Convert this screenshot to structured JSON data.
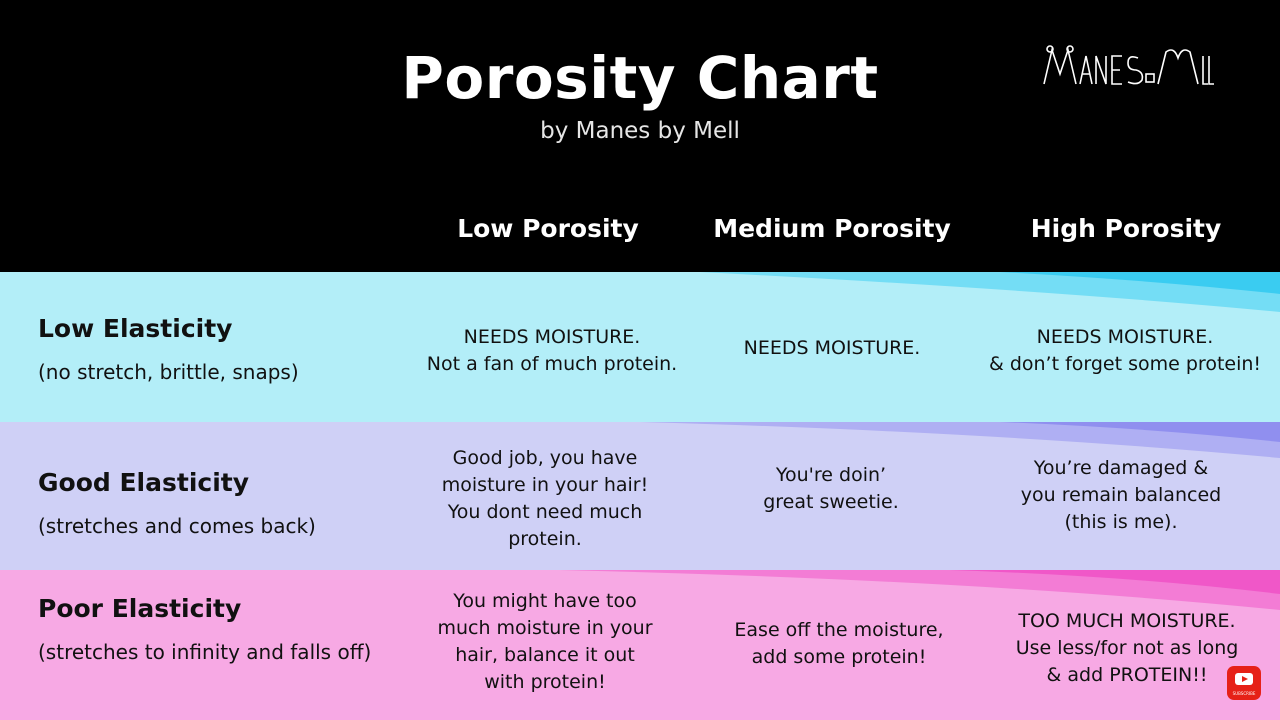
{
  "header": {
    "title": "Porosity Chart",
    "subtitle": "by Manes by Mell",
    "logo_text": "MANES by MELL"
  },
  "columns": [
    "Low Porosity",
    "Medium Porosity",
    "High Porosity"
  ],
  "rows": [
    {
      "title": "Low Elasticity",
      "subtitle": "(no stretch, brittle, snaps)",
      "color": "#b3eef8",
      "cells": [
        [
          "NEEDS MOISTURE.",
          "Not a fan of much protein."
        ],
        [
          "NEEDS MOISTURE."
        ],
        [
          "NEEDS MOISTURE.",
          "& don’t forget some protein!"
        ]
      ]
    },
    {
      "title": "Good Elasticity",
      "subtitle": "(stretches and comes back)",
      "color": "#cfd0f6",
      "cells": [
        [
          "Good job, you have",
          "moisture in your hair!",
          "You dont need much",
          "protein."
        ],
        [
          "You're doin’",
          "great sweetie."
        ],
        [
          "You’re damaged &",
          "you remain balanced",
          "(this is me)."
        ]
      ]
    },
    {
      "title": "Poor Elasticity",
      "subtitle": "(stretches to infinity and falls off)",
      "color": "#f7a9e4",
      "cells": [
        [
          "You might have too",
          "much moisture in your",
          "hair, balance it out",
          "with protein!"
        ],
        [
          "Ease off the moisture,",
          "add some protein!"
        ],
        [
          "TOO MUCH MOISTURE.",
          "Use less/for not as long",
          "& add PROTEIN!!"
        ]
      ]
    }
  ],
  "youtube_badge": {
    "label": "SUBSCRIBE",
    "color": "#e62117"
  }
}
